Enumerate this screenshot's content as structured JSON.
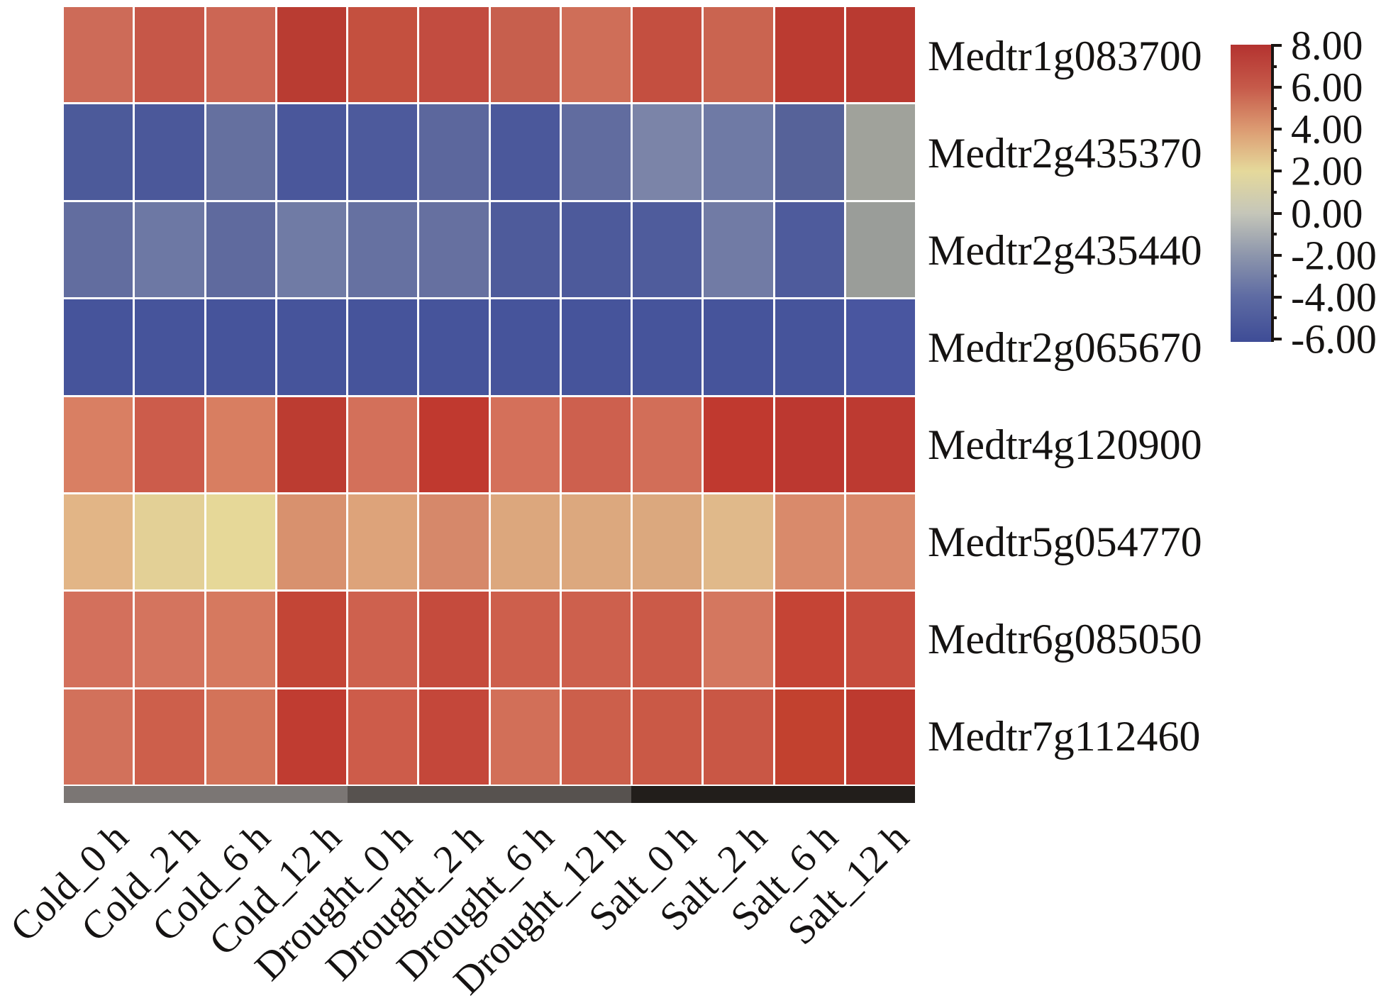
{
  "figure": {
    "background": "#ffffff",
    "text_color": "#151312"
  },
  "chart_data": {
    "type": "heatmap",
    "title": "",
    "xlabel": "",
    "ylabel": "",
    "grid_gap_color": "#ffffff",
    "x_categories": [
      "Cold_0 h",
      "Cold_2 h",
      "Cold_6 h",
      "Cold_12 h",
      "Drought_0 h",
      "Drought_2 h",
      "Drought_6 h",
      "Drought_12 h",
      "Salt_0 h",
      "Salt_2 h",
      "Salt_6 h",
      "Salt_12 h"
    ],
    "y_categories": [
      "Medtr1g083700",
      "Medtr2g435370",
      "Medtr2g435440",
      "Medtr2g065670",
      "Medtr4g120900",
      "Medtr5g054770",
      "Medtr6g085050",
      "Medtr7g112460"
    ],
    "series": [
      {
        "name": "Medtr1g083700",
        "values": [
          5.5,
          6.2,
          5.6,
          7.5,
          6.5,
          6.6,
          5.9,
          5.4,
          6.4,
          5.7,
          7.5,
          7.6
        ],
        "colors": [
          "#cd6b58",
          "#c65748",
          "#cc6654",
          "#b93c32",
          "#c4503f",
          "#c24c40",
          "#c75f4d",
          "#cf6e58",
          "#c44f40",
          "#ca6450",
          "#bb3b31",
          "#b93a31"
        ]
      },
      {
        "name": "Medtr2g435370",
        "values": [
          -4.4,
          -4.5,
          -3.2,
          -4.5,
          -4.4,
          -3.7,
          -4.5,
          -3.4,
          -2.3,
          -2.8,
          -4.1,
          -0.4
        ],
        "colors": [
          "#4c5a9a",
          "#4b589a",
          "#65709f",
          "#4a579b",
          "#4d5a9c",
          "#5c679d",
          "#4b589b",
          "#616c9f",
          "#7b84a8",
          "#6f7aa5",
          "#566299",
          "#a0a29b"
        ]
      },
      {
        "name": "Medtr2g435440",
        "values": [
          -3.3,
          -2.8,
          -3.5,
          -2.7,
          -3.1,
          -3.1,
          -4.3,
          -4.4,
          -4.3,
          -2.7,
          -4.3,
          -0.6
        ],
        "colors": [
          "#626d9f",
          "#6d78a4",
          "#5f6a9e",
          "#707ba5",
          "#6671a1",
          "#6670a0",
          "#4e5b9b",
          "#4d5a9b",
          "#4f5c9c",
          "#717ba5",
          "#4e5b9c",
          "#9a9d99"
        ]
      },
      {
        "name": "Medtr2g065670",
        "values": [
          -4.8,
          -4.8,
          -4.8,
          -4.8,
          -4.8,
          -4.8,
          -4.8,
          -4.8,
          -4.8,
          -4.8,
          -4.8,
          -4.6
        ],
        "colors": [
          "#46549b",
          "#46549b",
          "#46549b",
          "#46549b",
          "#46549b",
          "#46549b",
          "#46549b",
          "#46549b",
          "#46549b",
          "#46549b",
          "#46549b",
          "#4956a0"
        ]
      },
      {
        "name": "Medtr4g120900",
        "values": [
          4.9,
          6.1,
          4.9,
          7.4,
          5.3,
          7.3,
          5.3,
          6.0,
          5.4,
          7.3,
          7.5,
          7.4
        ],
        "colors": [
          "#d97f63",
          "#cc5c4b",
          "#d87e61",
          "#bc3c31",
          "#d3705a",
          "#c0392f",
          "#d4705a",
          "#cd604e",
          "#d26e58",
          "#c0392f",
          "#bc3830",
          "#bd3a31"
        ]
      },
      {
        "name": "Medtr5g054770",
        "values": [
          3.5,
          2.1,
          1.9,
          4.4,
          3.9,
          4.6,
          3.8,
          3.8,
          3.8,
          3.3,
          4.5,
          4.5
        ],
        "colors": [
          "#e2b586",
          "#e3d096",
          "#e6d898",
          "#d8916e",
          "#dda37a",
          "#d6886a",
          "#dca77d",
          "#dca87e",
          "#dba87e",
          "#e0b98a",
          "#d98a6b",
          "#d9896b"
        ]
      },
      {
        "name": "Medtr6g085050",
        "values": [
          5.3,
          5.2,
          5.1,
          6.9,
          6.0,
          6.6,
          6.0,
          6.0,
          6.2,
          5.1,
          6.8,
          6.5
        ],
        "colors": [
          "#d3705c",
          "#d4745e",
          "#d6795f",
          "#c34536",
          "#ce614e",
          "#c54b3d",
          "#cd5f4c",
          "#cd604d",
          "#cb5a48",
          "#d4775f",
          "#c54435",
          "#c74d3e"
        ]
      },
      {
        "name": "Medtr7g112460",
        "values": [
          5.3,
          6.0,
          5.2,
          7.3,
          6.1,
          6.7,
          5.4,
          6.0,
          6.2,
          6.3,
          7.0,
          7.4
        ],
        "colors": [
          "#d2715b",
          "#cd5f4b",
          "#d37359",
          "#c03c31",
          "#cd5c4a",
          "#c4473a",
          "#d26f58",
          "#cc5f4b",
          "#ca5946",
          "#c95745",
          "#c2412f",
          "#bd3a2f"
        ]
      }
    ],
    "condition_strip": [
      {
        "color": "#7b7674",
        "span": 4
      },
      {
        "color": "#57524f",
        "span": 4
      },
      {
        "color": "#221e1b",
        "span": 4
      }
    ],
    "colorbar": {
      "tick_labels": [
        "8.00",
        "6.00",
        "4.00",
        "2.00",
        "0.00",
        "-2.00",
        "-4.00",
        "-6.00"
      ],
      "tick_values": [
        8,
        6,
        4,
        2,
        0,
        -2,
        -4,
        -6
      ],
      "minor_tick_values": [
        7,
        5,
        3,
        1,
        -1,
        -3,
        -5
      ],
      "range_max": 8,
      "range_min": -6,
      "gradient_stops": [
        "#b43330",
        "#c65a4a",
        "#dc9b72",
        "#e5d99b",
        "#c5c6b9",
        "#8d96ac",
        "#5e6ba3",
        "#404e97"
      ],
      "axis_color": "#1a1512",
      "position": "right"
    },
    "legend": "none",
    "grid": "white cell gaps"
  }
}
